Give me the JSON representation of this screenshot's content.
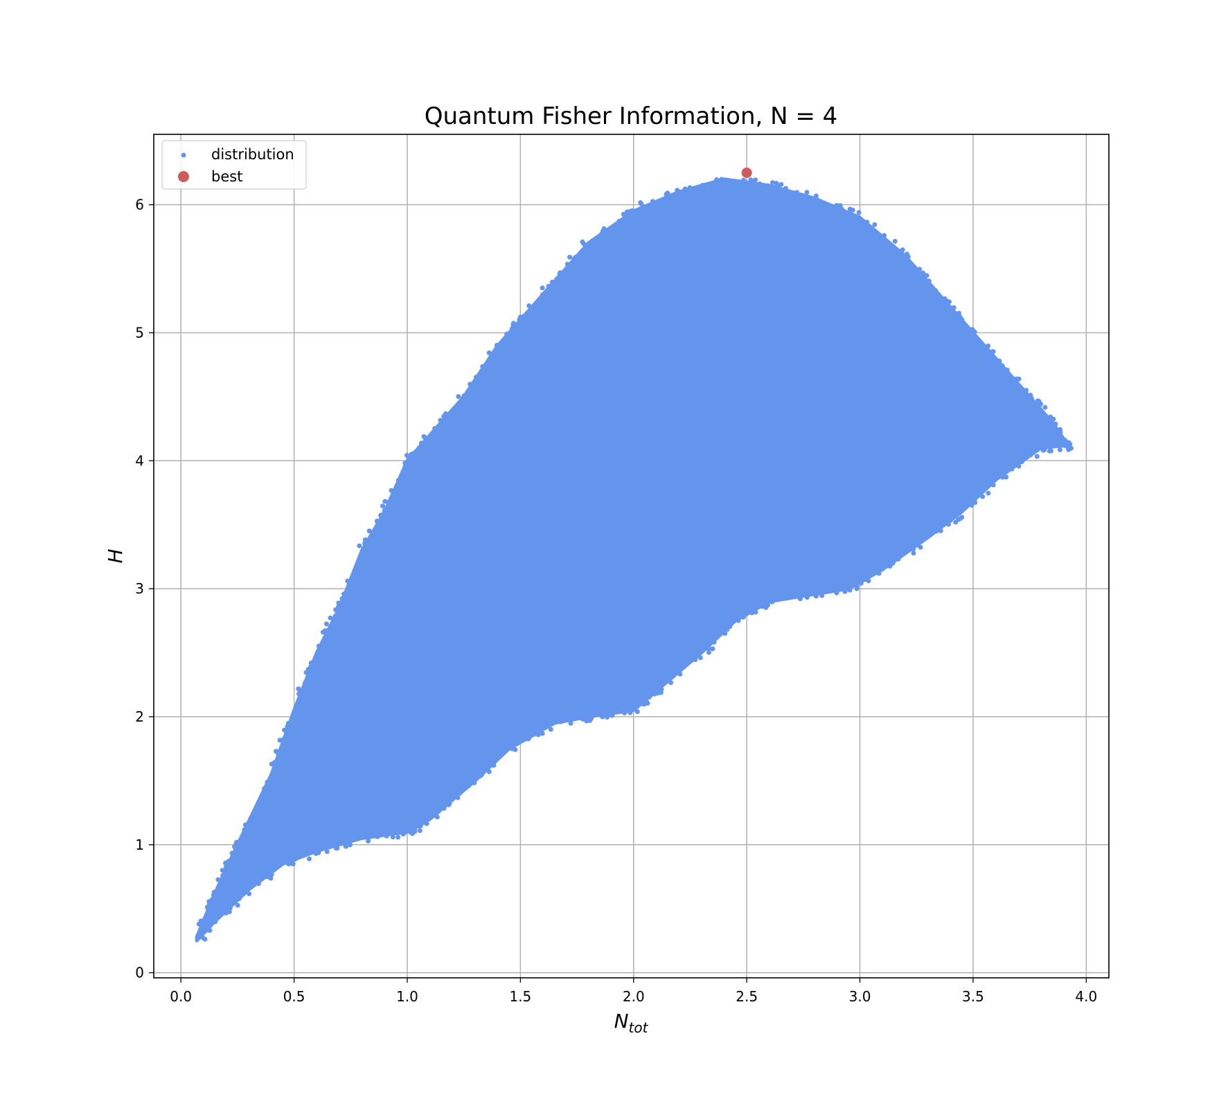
{
  "chart_data": {
    "type": "scatter",
    "title": "Quantum Fisher Information, N = 4",
    "xlabel": "N",
    "xlabel_sub": "tot",
    "ylabel": "H",
    "xlim": [
      -0.12,
      4.1
    ],
    "ylim": [
      -0.04,
      6.55
    ],
    "x_ticks": [
      0.0,
      0.5,
      1.0,
      1.5,
      2.0,
      2.5,
      3.0,
      3.5,
      4.0
    ],
    "x_tick_labels": [
      "0.0",
      "0.5",
      "1.0",
      "1.5",
      "2.0",
      "2.5",
      "3.0",
      "3.5",
      "4.0"
    ],
    "y_ticks": [
      0,
      1,
      2,
      3,
      4,
      5,
      6
    ],
    "y_tick_labels": [
      "0",
      "1",
      "2",
      "3",
      "4",
      "5",
      "6"
    ],
    "grid": true,
    "legend_position": "top-left",
    "series": [
      {
        "name": "distribution",
        "color": "#6495ED",
        "kind": "dense-region",
        "upper_envelope": [
          [
            0.07,
            0.28
          ],
          [
            0.15,
            0.62
          ],
          [
            0.25,
            1.0
          ],
          [
            0.4,
            1.55
          ],
          [
            0.5,
            2.05
          ],
          [
            0.6,
            2.5
          ],
          [
            0.7,
            2.85
          ],
          [
            0.8,
            3.3
          ],
          [
            0.9,
            3.6
          ],
          [
            1.0,
            4.0
          ],
          [
            1.1,
            4.2
          ],
          [
            1.25,
            4.5
          ],
          [
            1.4,
            4.9
          ],
          [
            1.5,
            5.1
          ],
          [
            1.65,
            5.4
          ],
          [
            1.8,
            5.7
          ],
          [
            2.0,
            5.95
          ],
          [
            2.2,
            6.1
          ],
          [
            2.4,
            6.2
          ],
          [
            2.6,
            6.15
          ],
          [
            2.8,
            6.05
          ],
          [
            3.0,
            5.9
          ],
          [
            3.2,
            5.6
          ],
          [
            3.35,
            5.3
          ],
          [
            3.5,
            5.0
          ],
          [
            3.6,
            4.8
          ],
          [
            3.75,
            4.5
          ],
          [
            3.85,
            4.3
          ],
          [
            3.92,
            4.12
          ]
        ],
        "lower_envelope": [
          [
            3.92,
            4.12
          ],
          [
            3.8,
            4.1
          ],
          [
            3.6,
            3.85
          ],
          [
            3.45,
            3.6
          ],
          [
            3.3,
            3.4
          ],
          [
            3.1,
            3.15
          ],
          [
            2.95,
            3.0
          ],
          [
            2.6,
            2.9
          ],
          [
            2.45,
            2.75
          ],
          [
            2.3,
            2.5
          ],
          [
            2.1,
            2.2
          ],
          [
            2.0,
            2.05
          ],
          [
            1.8,
            2.0
          ],
          [
            1.65,
            1.95
          ],
          [
            1.45,
            1.75
          ],
          [
            1.3,
            1.5
          ],
          [
            1.1,
            1.2
          ],
          [
            1.0,
            1.1
          ],
          [
            0.8,
            1.05
          ],
          [
            0.6,
            0.95
          ],
          [
            0.45,
            0.85
          ],
          [
            0.3,
            0.65
          ],
          [
            0.15,
            0.4
          ],
          [
            0.07,
            0.25
          ]
        ]
      },
      {
        "name": "best",
        "color": "#CD5C5C",
        "points": [
          [
            2.5,
            6.25
          ]
        ]
      }
    ]
  }
}
